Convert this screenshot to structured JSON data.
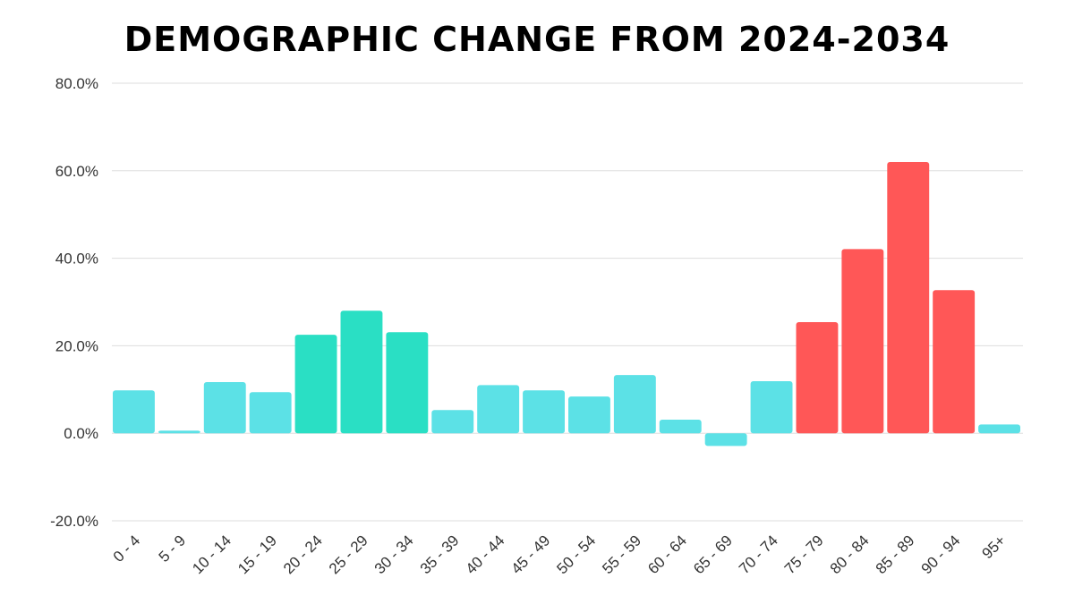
{
  "chart_data": {
    "type": "bar",
    "title": "DEMOGRAPHIC CHANGE FROM 2024-2034",
    "xlabel": "",
    "ylabel": "",
    "ylim": [
      -20,
      80
    ],
    "yticks": [
      80,
      60,
      40,
      20,
      0,
      -20
    ],
    "ytick_labels": [
      "80.0%",
      "60.0%",
      "40.0%",
      "20.0%",
      "0.0%",
      "-20.0%"
    ],
    "grid": true,
    "categories": [
      "0 - 4",
      "5 - 9",
      "10 - 14",
      "15 - 19",
      "20 - 24",
      "25 - 29",
      "30 - 34",
      "35 - 39",
      "40 - 44",
      "45 - 49",
      "50 - 54",
      "55 - 59",
      "60 - 64",
      "65 - 69",
      "70 - 74",
      "75 - 79",
      "80 - 84",
      "85 - 89",
      "90 - 94",
      "95+"
    ],
    "values": [
      9.8,
      0.6,
      11.7,
      9.4,
      22.5,
      28.0,
      23.1,
      5.3,
      11.0,
      9.8,
      8.4,
      13.3,
      3.1,
      -2.9,
      11.9,
      25.4,
      42.1,
      62.0,
      32.7,
      2.0
    ],
    "bar_groups": [
      "other",
      "other",
      "other",
      "other",
      "young",
      "young",
      "young",
      "other",
      "other",
      "other",
      "other",
      "other",
      "other",
      "other",
      "other",
      "old",
      "old",
      "old",
      "old",
      "other"
    ],
    "colors": {
      "other": "#5CE1E6",
      "young": "#2ADFC4",
      "old": "#FF5757",
      "grid": "#DDDDDD"
    }
  }
}
